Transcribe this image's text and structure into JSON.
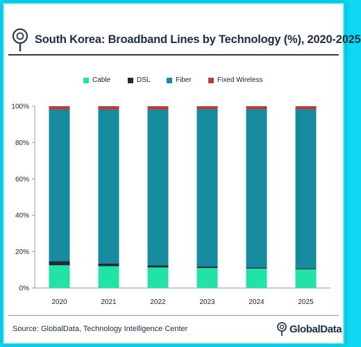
{
  "header": {
    "title": "South Korea: Broadband Lines by Technology (%), 2020-2025",
    "logo_icon": "globaldata-logo-icon"
  },
  "footer": {
    "source": "Source: GlobalData, Technology Intelligence Center",
    "brand_name": "GlobalData",
    "brand_icon": "globaldata-logo-icon"
  },
  "colors": {
    "Cable": "#21e3a5",
    "DSL": "#1e2a3a",
    "Fiber": "#168ba0",
    "Fixed Wireless": "#c0393b",
    "background": "#0fd8f2"
  },
  "chart_data": {
    "type": "bar",
    "stacked": true,
    "categories": [
      "2020",
      "2021",
      "2022",
      "2023",
      "2024",
      "2025"
    ],
    "series": [
      {
        "name": "Cable",
        "values": [
          12.5,
          12.0,
          11.3,
          11.0,
          10.7,
          10.3
        ]
      },
      {
        "name": "DSL",
        "values": [
          2.3,
          1.5,
          1.1,
          0.8,
          0.6,
          0.5
        ]
      },
      {
        "name": "Fiber",
        "values": [
          83.3,
          84.6,
          85.7,
          86.5,
          87.0,
          87.5
        ]
      },
      {
        "name": "Fixed Wireless",
        "values": [
          1.9,
          1.9,
          1.9,
          1.7,
          1.7,
          1.7
        ]
      }
    ],
    "y_ticks": [
      "0%",
      "20%",
      "40%",
      "60%",
      "80%",
      "100%"
    ],
    "ylim": [
      0,
      100
    ],
    "legend_position": "top",
    "grid": false
  }
}
